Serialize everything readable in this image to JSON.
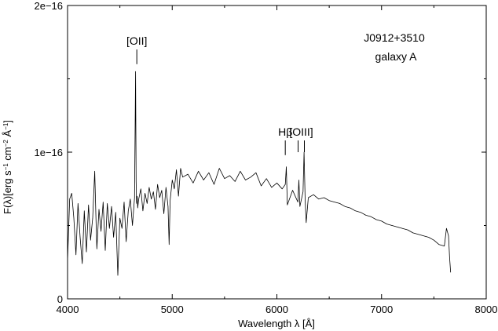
{
  "chart_data": {
    "type": "line",
    "title_lines": [
      "J0912+3510",
      "galaxy A"
    ],
    "xlabel": "Wavelength λ [Å]",
    "ylabel_parts": {
      "prefix": "F(λ)[erg s",
      "exp1": "−1",
      "mid1": " cm",
      "exp2": "−2",
      "mid2": " Å",
      "exp3": "−1",
      "suffix": "]"
    },
    "xlim": [
      4000,
      8000
    ],
    "ylim": [
      0,
      2e-16
    ],
    "xticks": [
      {
        "value": 4000,
        "label": "4000"
      },
      {
        "value": 5000,
        "label": "5000"
      },
      {
        "value": 6000,
        "label": "6000"
      },
      {
        "value": 7000,
        "label": "7000"
      },
      {
        "value": 8000,
        "label": "8000"
      }
    ],
    "yticks": [
      {
        "value": 0,
        "label": "0"
      },
      {
        "value": 1e-16,
        "label": "1e−16"
      },
      {
        "value": 2e-16,
        "label": "2e−16"
      }
    ],
    "line_annotations": [
      {
        "label": "[OII]",
        "marks": [
          {
            "x": 3727,
            "y": 1.7e-16,
            "len": 1e-17
          }
        ]
      },
      {
        "label": "Hβ",
        "marks": [
          {
            "x": 4861,
            "y": 1.08e-16,
            "len": 1e-17
          }
        ]
      },
      {
        "label": "[OIII]",
        "marks": [
          {
            "x": 4959,
            "y": 1.08e-16,
            "len": 8e-18
          },
          {
            "x": 5007,
            "y": 1.08e-16,
            "len": 8e-18
          }
        ]
      }
    ],
    "redshift_factor": 1.2508,
    "series": [
      {
        "x": [
          4000,
          4020,
          4040,
          4060,
          4080,
          4100,
          4120,
          4140,
          4160,
          4180,
          4200,
          4220,
          4240,
          4260,
          4270,
          4280,
          4300,
          4320,
          4340,
          4360,
          4380,
          4400,
          4420,
          4440,
          4460,
          4480,
          4500,
          4520,
          4540,
          4560,
          4580,
          4600,
          4620,
          4640,
          4650,
          4655,
          4660,
          4665,
          4670,
          4680,
          4700,
          4720,
          4740,
          4760,
          4780,
          4800,
          4820,
          4840,
          4860,
          4880,
          4900,
          4920,
          4940,
          4960,
          4970,
          4980,
          5000,
          5020,
          5040,
          5060,
          5080,
          5100,
          5150,
          5200,
          5250,
          5300,
          5350,
          5400,
          5450,
          5500,
          5550,
          5600,
          5650,
          5700,
          5750,
          5800,
          5850,
          5900,
          5950,
          6000,
          6050,
          6080,
          6090,
          6100,
          6150,
          6200,
          6210,
          6220,
          6250,
          6260,
          6270,
          6280,
          6300,
          6350,
          6400,
          6450,
          6500,
          6550,
          6600,
          6650,
          6700,
          6750,
          6800,
          6850,
          6900,
          6950,
          7000,
          7050,
          7100,
          7150,
          7200,
          7250,
          7300,
          7350,
          7400,
          7450,
          7500,
          7550,
          7600,
          7620,
          7640,
          7650,
          7660
        ],
        "y": [
          2.6e-17,
          6.8e-17,
          7.2e-17,
          5.5e-17,
          3e-17,
          6.5e-17,
          4.2e-17,
          2.4e-17,
          6e-17,
          3.2e-17,
          6.4e-17,
          4e-17,
          5.5e-17,
          8.7e-17,
          5.8e-17,
          3.4e-17,
          6.1e-17,
          4.6e-17,
          6.6e-17,
          3.3e-17,
          6.5e-17,
          4.8e-17,
          6.3e-17,
          4.2e-17,
          5.9e-17,
          1.6e-17,
          5.5e-17,
          4.8e-17,
          6.6e-17,
          3.9e-17,
          6e-17,
          6.8e-17,
          5e-17,
          6.9e-17,
          1.55e-16,
          8e-17,
          6.5e-17,
          7e-17,
          6.2e-17,
          6.8e-17,
          7.5e-17,
          6e-17,
          7.2e-17,
          6.5e-17,
          7.6e-17,
          6.8e-17,
          7.3e-17,
          6.1e-17,
          7.8e-17,
          6.9e-17,
          7.4e-17,
          5.8e-17,
          7.6e-17,
          6.3e-17,
          3.7e-17,
          6.7e-17,
          8.1e-17,
          7.5e-17,
          8.8e-17,
          7e-17,
          8.9e-17,
          8.3e-17,
          8.5e-17,
          7.9e-17,
          8.7e-17,
          8.1e-17,
          8.6e-17,
          7.8e-17,
          8.9e-17,
          8.2e-17,
          8.4e-17,
          8e-17,
          8.7e-17,
          8.1e-17,
          8.3e-17,
          8.6e-17,
          7.7e-17,
          8.2e-17,
          7.6e-17,
          7.9e-17,
          7.5e-17,
          7.8e-17,
          9e-17,
          6.4e-17,
          7.4e-17,
          6.6e-17,
          8.1e-17,
          6.3e-17,
          7.3e-17,
          1e-16,
          6.7e-17,
          5.2e-17,
          6.9e-17,
          7.1e-17,
          6.8e-17,
          6.9e-17,
          6.7e-17,
          6.6e-17,
          6.5e-17,
          6.3e-17,
          6.2e-17,
          6e-17,
          5.9e-17,
          5.7e-17,
          5.6e-17,
          5.4e-17,
          5.3e-17,
          5.1e-17,
          5e-17,
          4.9e-17,
          4.8e-17,
          4.7e-17,
          4.5e-17,
          4.4e-17,
          4.3e-17,
          4.2e-17,
          4e-17,
          3.7e-17,
          3.6e-17,
          4.8e-17,
          4.3e-17,
          2.8e-17,
          1.8e-17
        ]
      }
    ]
  }
}
